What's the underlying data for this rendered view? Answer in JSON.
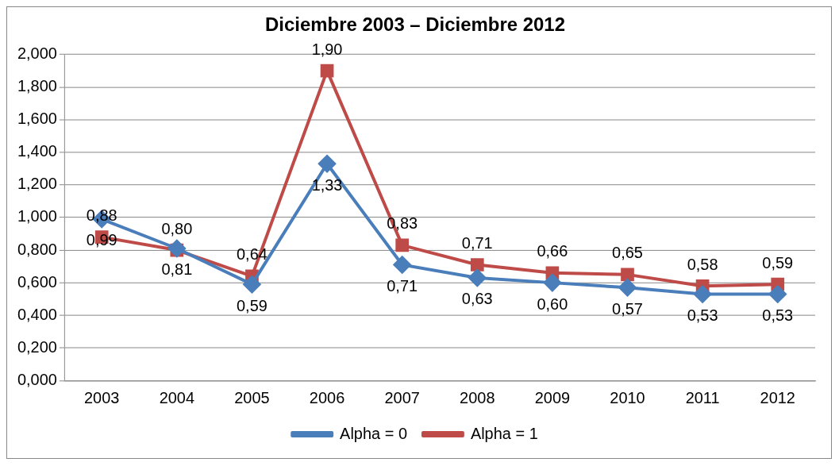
{
  "chart_data": {
    "type": "line",
    "title": "Diciembre 2003 – Diciembre 2012",
    "categories": [
      "2003",
      "2004",
      "2005",
      "2006",
      "2007",
      "2008",
      "2009",
      "2010",
      "2011",
      "2012"
    ],
    "series": [
      {
        "name": "Alpha = 0",
        "color": "#4a7ebb",
        "marker": "diamond",
        "values": [
          0.99,
          0.81,
          0.59,
          1.33,
          0.71,
          0.63,
          0.6,
          0.57,
          0.53,
          0.53
        ],
        "value_labels": [
          "0,99",
          "0,81",
          "0,59",
          "1,33",
          "0,71",
          "0,63",
          "0,60",
          "0,57",
          "0,53",
          "0,53"
        ]
      },
      {
        "name": "Alpha = 1",
        "color": "#be4b48",
        "marker": "square",
        "values": [
          0.88,
          0.8,
          0.64,
          1.9,
          0.83,
          0.71,
          0.66,
          0.65,
          0.58,
          0.59
        ],
        "value_labels": [
          "0,88",
          "0,80",
          "0,64",
          "1,90",
          "0,83",
          "0,71",
          "0,66",
          "0,65",
          "0,58",
          "0,59"
        ]
      }
    ],
    "ylim": [
      0,
      2
    ],
    "yticks": [
      {
        "value": 0,
        "label": "0,000"
      },
      {
        "value": 0.2,
        "label": "0,200"
      },
      {
        "value": 0.4,
        "label": "0,400"
      },
      {
        "value": 0.6,
        "label": "0,600"
      },
      {
        "value": 0.8,
        "label": "0,800"
      },
      {
        "value": 1,
        "label": "1,000"
      },
      {
        "value": 1.2,
        "label": "1,200"
      },
      {
        "value": 1.4,
        "label": "1,400"
      },
      {
        "value": 1.6,
        "label": "1,600"
      },
      {
        "value": 1.8,
        "label": "1,800"
      },
      {
        "value": 2,
        "label": "2,000"
      }
    ],
    "grid": "y",
    "legend": "bottom"
  }
}
